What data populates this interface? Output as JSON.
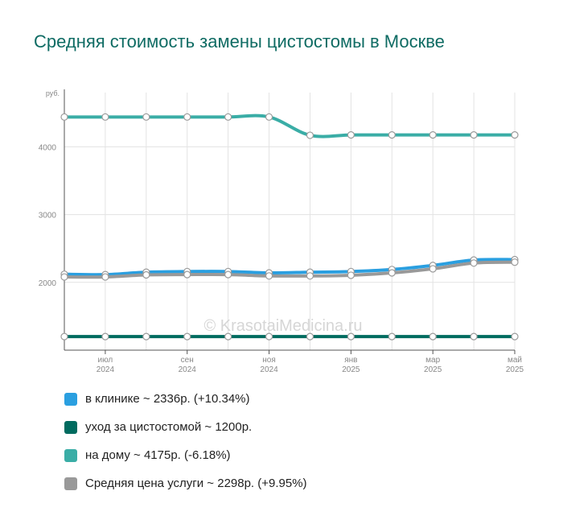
{
  "title": "Средняя стоимость замены цистостомы в Москве",
  "watermark": "© KrasotaiMedicina.ru",
  "chart_data": {
    "type": "line",
    "ylabel": "руб.",
    "ylim": [
      1000,
      4800
    ],
    "yticks": [
      {
        "value": 2000,
        "label": "2000"
      },
      {
        "value": 3000,
        "label": "3000"
      },
      {
        "value": 4000,
        "label": "4000"
      }
    ],
    "x": [
      "2024-06",
      "2024-07",
      "2024-08",
      "2024-09",
      "2024-10",
      "2024-11",
      "2024-12",
      "2025-01",
      "2025-02",
      "2025-03",
      "2025-04",
      "2025-05"
    ],
    "xticks": [
      {
        "index": 1,
        "month": "июл",
        "year": "2024"
      },
      {
        "index": 3,
        "month": "сен",
        "year": "2024"
      },
      {
        "index": 5,
        "month": "ноя",
        "year": "2024"
      },
      {
        "index": 7,
        "month": "янв",
        "year": "2025"
      },
      {
        "index": 9,
        "month": "мар",
        "year": "2025"
      },
      {
        "index": 11,
        "month": "май",
        "year": "2025"
      }
    ],
    "series": [
      {
        "name": "на дому",
        "color": "#3aada6",
        "values": [
          4440,
          4440,
          4440,
          4440,
          4440,
          4440,
          4170,
          4175,
          4175,
          4175,
          4175,
          4175
        ]
      },
      {
        "name": "в клинике",
        "color": "#2a9fe0",
        "values": [
          2120,
          2115,
          2150,
          2160,
          2160,
          2140,
          2150,
          2160,
          2190,
          2250,
          2330,
          2336
        ]
      },
      {
        "name": "Средняя цена услуги",
        "color": "#999999",
        "values": [
          2080,
          2080,
          2110,
          2115,
          2115,
          2095,
          2095,
          2105,
          2140,
          2200,
          2285,
          2298
        ]
      },
      {
        "name": "уход за цистостомой",
        "color": "#006b5f",
        "values": [
          1200,
          1200,
          1200,
          1200,
          1200,
          1200,
          1200,
          1200,
          1200,
          1200,
          1200,
          1200
        ]
      }
    ]
  },
  "legend": [
    {
      "label": "в клинике ~ 2336р. (+10.34%)",
      "color": "#2a9fe0"
    },
    {
      "label": "уход за цистостомой ~ 1200р.",
      "color": "#006b5f"
    },
    {
      "label": "на дому ~ 4175р. (-6.18%)",
      "color": "#3aada6"
    },
    {
      "label": "Средняя цена услуги ~ 2298р. (+9.95%)",
      "color": "#999999"
    }
  ]
}
